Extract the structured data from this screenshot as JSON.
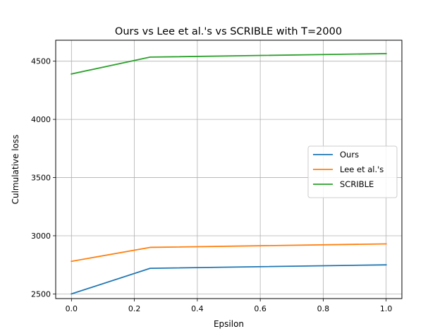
{
  "chart_data": {
    "type": "line",
    "title": "Ours vs Lee et al.'s vs  SCRIBLE with T=2000",
    "xlabel": "Epsilon",
    "ylabel": "Culmulative loss",
    "x": [
      0.0,
      0.25,
      1.0
    ],
    "xlim": [
      -0.05,
      1.05
    ],
    "ylim": [
      2460,
      4680
    ],
    "xticks": [
      0.0,
      0.2,
      0.4,
      0.6,
      0.8,
      1.0
    ],
    "xtick_labels": [
      "0.0",
      "0.2",
      "0.4",
      "0.6",
      "0.8",
      "1.0"
    ],
    "yticks": [
      2500,
      3000,
      3500,
      4000,
      4500
    ],
    "ytick_labels": [
      "2500",
      "3000",
      "3500",
      "4000",
      "4500"
    ],
    "grid": true,
    "legend_position": "center-right",
    "series": [
      {
        "name": "Ours",
        "color": "#1f77b4",
        "values": [
          2500,
          2720,
          2750
        ]
      },
      {
        "name": "Lee et al.'s",
        "color": "#ff7f0e",
        "values": [
          2780,
          2900,
          2930
        ]
      },
      {
        "name": "SCRIBLE",
        "color": "#2ca02c",
        "values": [
          4390,
          4535,
          4565
        ]
      }
    ]
  }
}
